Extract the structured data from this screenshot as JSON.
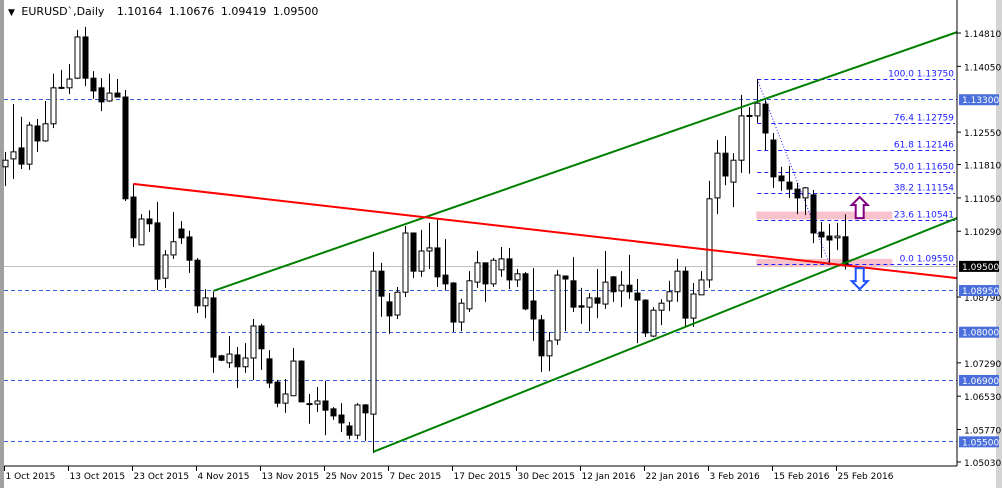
{
  "header": {
    "symbol": "EURUSD`,Daily",
    "open": "1.10164",
    "high": "1.10676",
    "low": "1.09419",
    "close": "1.09500",
    "menu_icon": "triangle-down-icon"
  },
  "colors": {
    "bull_fill": "#ffffff",
    "bear_fill": "#000000",
    "channel": "#008000",
    "resistance": "#ff0000",
    "level_line": "#3060e0",
    "level_label_bg": "#4a6fdc",
    "current_price_bg": "#000000",
    "fib": "#2020ff",
    "zone": "#f7c2cc",
    "arrow_up": "#800080",
    "arrow_down": "#1e50ff"
  },
  "chart_data": {
    "type": "candlestick",
    "title": "EURUSD`,Daily",
    "ylim": [
      1.0503,
      1.1481
    ],
    "grid": false,
    "candles": [
      [
        1.1176,
        1.121,
        1.1132,
        1.1191
      ],
      [
        1.1194,
        1.1319,
        1.1148,
        1.121
      ],
      [
        1.1219,
        1.129,
        1.1171,
        1.1182
      ],
      [
        1.1182,
        1.1278,
        1.1169,
        1.1271
      ],
      [
        1.1269,
        1.1285,
        1.121,
        1.1235
      ],
      [
        1.1235,
        1.1326,
        1.1233,
        1.1274
      ],
      [
        1.1274,
        1.1388,
        1.1264,
        1.1356
      ],
      [
        1.1356,
        1.1397,
        1.1353,
        1.1357
      ],
      [
        1.1356,
        1.141,
        1.1342,
        1.1376
      ],
      [
        1.1378,
        1.1488,
        1.1376,
        1.1472
      ],
      [
        1.1472,
        1.1495,
        1.136,
        1.1378
      ],
      [
        1.1378,
        1.1394,
        1.1331,
        1.1349
      ],
      [
        1.1356,
        1.1378,
        1.1303,
        1.1324
      ],
      [
        1.1326,
        1.1388,
        1.1324,
        1.1344
      ],
      [
        1.1344,
        1.1376,
        1.1335,
        1.1335
      ],
      [
        1.1335,
        1.1351,
        1.1098,
        1.1103
      ],
      [
        1.1107,
        1.1137,
        1.0993,
        1.1014
      ],
      [
        1.0998,
        1.1068,
        1.0998,
        1.1057
      ],
      [
        1.1057,
        1.1077,
        1.1027,
        1.1046
      ],
      [
        1.1048,
        1.1096,
        1.0895,
        1.092
      ],
      [
        1.0922,
        1.0986,
        1.09,
        1.0975
      ],
      [
        1.0975,
        1.1073,
        1.0966,
        1.1005
      ],
      [
        1.1034,
        1.1052,
        1.1,
        1.1014
      ],
      [
        1.1016,
        1.103,
        1.0934,
        1.0963
      ],
      [
        1.0963,
        1.0968,
        1.0843,
        1.0859
      ],
      [
        1.0859,
        1.0897,
        1.0831,
        1.0877
      ],
      [
        1.0877,
        1.0891,
        1.0706,
        1.0742
      ],
      [
        1.0745,
        1.0747,
        1.0733,
        1.0735
      ],
      [
        1.0729,
        1.079,
        1.0717,
        1.0749
      ],
      [
        1.0747,
        1.0765,
        1.0672,
        1.072
      ],
      [
        1.072,
        1.0774,
        1.0706,
        1.074
      ],
      [
        1.074,
        1.0829,
        1.069,
        1.0813
      ],
      [
        1.0813,
        1.0818,
        1.0713,
        1.0761
      ],
      [
        1.0738,
        1.0758,
        1.0672,
        1.0683
      ],
      [
        1.0685,
        1.069,
        1.0628,
        1.0637
      ],
      [
        1.0637,
        1.0692,
        1.0615,
        1.0658
      ],
      [
        1.0654,
        1.0763,
        1.0654,
        1.0733
      ],
      [
        1.0733,
        1.0735,
        1.064,
        1.064
      ],
      [
        1.0635,
        1.0658,
        1.059,
        1.0636
      ],
      [
        1.0635,
        1.0674,
        1.0617,
        1.0642
      ],
      [
        1.0642,
        1.0688,
        1.0564,
        1.0621
      ],
      [
        1.0624,
        1.0628,
        1.0599,
        1.0608
      ],
      [
        1.061,
        1.0637,
        1.0571,
        1.0592
      ],
      [
        1.0585,
        1.0594,
        1.0555,
        1.0564
      ],
      [
        1.0564,
        1.0637,
        1.0555,
        1.0633
      ],
      [
        1.0633,
        1.0635,
        1.0551,
        1.0615
      ],
      [
        1.0612,
        1.0982,
        1.0523,
        1.0938
      ],
      [
        1.0938,
        1.0957,
        1.0834,
        1.0881
      ],
      [
        1.0868,
        1.0888,
        1.0795,
        1.0836
      ],
      [
        1.0838,
        1.0902,
        1.0829,
        1.089
      ],
      [
        1.089,
        1.1041,
        1.0879,
        1.1025
      ],
      [
        1.1025,
        1.1025,
        1.0922,
        1.0938
      ],
      [
        1.0938,
        1.1032,
        1.0925,
        1.0984
      ],
      [
        1.0984,
        1.1048,
        1.0943,
        1.0991
      ],
      [
        1.0991,
        1.1057,
        1.0902,
        1.0925
      ],
      [
        1.0929,
        1.1011,
        1.0895,
        1.0909
      ],
      [
        1.0911,
        1.0913,
        1.0799,
        1.0822
      ],
      [
        1.0822,
        1.0875,
        1.0801,
        1.0865
      ],
      [
        1.0852,
        1.0938,
        1.0845,
        1.0916
      ],
      [
        1.0913,
        1.0984,
        1.09,
        1.0957
      ],
      [
        1.0957,
        1.0957,
        1.0868,
        1.0909
      ],
      [
        1.0909,
        1.0968,
        1.0902,
        1.0963
      ],
      [
        1.0941,
        1.0993,
        1.0925,
        1.0966
      ],
      [
        1.0966,
        1.0991,
        1.0897,
        1.0918
      ],
      [
        1.0918,
        1.0943,
        1.0902,
        1.0932
      ],
      [
        1.0932,
        1.0936,
        1.0849,
        1.0852
      ],
      [
        1.087,
        1.0945,
        1.0779,
        1.0829
      ],
      [
        1.0827,
        1.0838,
        1.0708,
        1.0745
      ],
      [
        1.0745,
        1.0799,
        1.071,
        1.0779
      ],
      [
        1.0781,
        1.0941,
        1.077,
        1.0929
      ],
      [
        1.0927,
        1.0927,
        1.0801,
        1.092
      ],
      [
        1.0916,
        1.097,
        1.0845,
        1.0856
      ],
      [
        1.0859,
        1.09,
        1.0818,
        1.0856
      ],
      [
        1.0856,
        1.0888,
        1.0801,
        1.0877
      ],
      [
        1.0877,
        1.0943,
        1.0831,
        1.0865
      ],
      [
        1.0863,
        1.0984,
        1.0852,
        1.0913
      ],
      [
        1.0925,
        1.0927,
        1.0868,
        1.0891
      ],
      [
        1.0893,
        1.0938,
        1.0856,
        1.0906
      ],
      [
        1.0906,
        1.0975,
        1.0875,
        1.0891
      ],
      [
        1.0888,
        1.092,
        1.0774,
        1.0872
      ],
      [
        1.0872,
        1.0874,
        1.0788,
        1.0797
      ],
      [
        1.079,
        1.0856,
        1.0788,
        1.0849
      ],
      [
        1.0849,
        1.0874,
        1.0815,
        1.0865
      ],
      [
        1.087,
        1.0916,
        1.0847,
        1.0891
      ],
      [
        1.0891,
        1.0966,
        1.0868,
        1.0938
      ],
      [
        1.0938,
        1.0948,
        1.0811,
        1.0831
      ],
      [
        1.0831,
        1.0911,
        1.0811,
        1.0886
      ],
      [
        1.0884,
        1.0938,
        1.0884,
        1.0918
      ],
      [
        1.0918,
        1.1144,
        1.09,
        1.1103
      ],
      [
        1.1105,
        1.1237,
        1.1068,
        1.1207
      ],
      [
        1.1207,
        1.1246,
        1.1134,
        1.1155
      ],
      [
        1.1141,
        1.1207,
        1.1084,
        1.1191
      ],
      [
        1.1191,
        1.134,
        1.1162,
        1.1292
      ],
      [
        1.1292,
        1.1312,
        1.116,
        1.1293
      ],
      [
        1.1292,
        1.1376,
        1.1276,
        1.1321
      ],
      [
        1.1319,
        1.1328,
        1.1214,
        1.1253
      ],
      [
        1.1237,
        1.1253,
        1.1128,
        1.1153
      ],
      [
        1.1155,
        1.1176,
        1.1121,
        1.1144
      ],
      [
        1.1141,
        1.1178,
        1.1105,
        1.1125
      ],
      [
        1.1125,
        1.1139,
        1.1068,
        1.1105
      ],
      [
        1.1105,
        1.113,
        1.1066,
        1.1128
      ],
      [
        1.1112,
        1.1123,
        1.1002,
        1.1025
      ],
      [
        1.1027,
        1.105,
        1.0968,
        1.1016
      ],
      [
        1.1018,
        1.1046,
        1.0957,
        1.1009
      ],
      [
        1.1014,
        1.1048,
        1.0986,
        1.1018
      ],
      [
        1.10164,
        1.10676,
        1.09419,
        1.095
      ]
    ],
    "price_axis": [
      "1.14810",
      "1.14050",
      "1.12550",
      "1.11810",
      "1.11050",
      "1.10290",
      "1.08790",
      "1.07290",
      "1.06530",
      "1.05770",
      "1.05030"
    ],
    "highlighted_levels": [
      {
        "label": "1.13300",
        "price": 1.133
      },
      {
        "label": "1.08950",
        "price": 1.0895
      },
      {
        "label": "1.08000",
        "price": 1.08
      },
      {
        "label": "1.06900",
        "price": 1.069
      },
      {
        "label": "1.05500",
        "price": 1.055
      }
    ],
    "current_price": {
      "label": "1.09500",
      "price": 1.095
    },
    "time_axis": [
      {
        "label": "1 Oct 2015",
        "bar": 0
      },
      {
        "label": "13 Oct 2015",
        "bar": 8
      },
      {
        "label": "23 Oct 2015",
        "bar": 16
      },
      {
        "label": "4 Nov 2015",
        "bar": 24
      },
      {
        "label": "13 Nov 2015",
        "bar": 32
      },
      {
        "label": "25 Nov 2015",
        "bar": 40
      },
      {
        "label": "7 Dec 2015",
        "bar": 48
      },
      {
        "label": "17 Dec 2015",
        "bar": 56
      },
      {
        "label": "30 Dec 2015",
        "bar": 64
      },
      {
        "label": "12 Jan 2016",
        "bar": 72
      },
      {
        "label": "22 Jan 2016",
        "bar": 80
      },
      {
        "label": "3 Feb 2016",
        "bar": 88
      },
      {
        "label": "15 Feb 2016",
        "bar": 96
      },
      {
        "label": "25 Feb 2016",
        "bar": 104
      }
    ],
    "trendlines": [
      {
        "name": "channel-upper",
        "color": "channel",
        "from": [
          26,
          1.0893
        ],
        "to": [
          119,
          1.1483
        ]
      },
      {
        "name": "channel-lower",
        "color": "channel",
        "from": [
          46,
          1.0526
        ],
        "to": [
          119,
          1.1059
        ]
      },
      {
        "name": "resistance-line",
        "color": "resistance",
        "from": [
          16,
          1.1137
        ],
        "to": [
          119,
          1.0922
        ]
      }
    ],
    "fibonacci": {
      "from_bar": 94,
      "to_bar": 119,
      "anchor": {
        "from": [
          94,
          1.1375
        ],
        "to": [
          103,
          1.0955
        ]
      },
      "levels": [
        {
          "label": "100.0 1.13750",
          "price": 1.1375
        },
        {
          "label": "76.4 1.12759",
          "price": 1.12759
        },
        {
          "label": "61.8 1.12146",
          "price": 1.12146
        },
        {
          "label": "50.0 1.11650",
          "price": 1.1165
        },
        {
          "label": "38.2 1.11154",
          "price": 1.11154
        },
        {
          "label": "23.6 1.10541",
          "price": 1.10541
        },
        {
          "label": "0.0 1.09550",
          "price": 1.0955
        }
      ]
    },
    "zones": [
      {
        "from_bar": 94,
        "to_bar": 111,
        "top": 1.1074,
        "bottom": 1.1056
      },
      {
        "from_bar": 94,
        "to_bar": 111,
        "top": 1.0966,
        "bottom": 1.0948
      }
    ],
    "arrows": [
      {
        "dir": "up",
        "bar": 106.8,
        "top": 1.1107,
        "bottom": 1.1059,
        "color": "arrow_up"
      },
      {
        "dir": "down",
        "bar": 106.8,
        "top": 1.0945,
        "bottom": 1.0897,
        "color": "arrow_down"
      }
    ]
  }
}
